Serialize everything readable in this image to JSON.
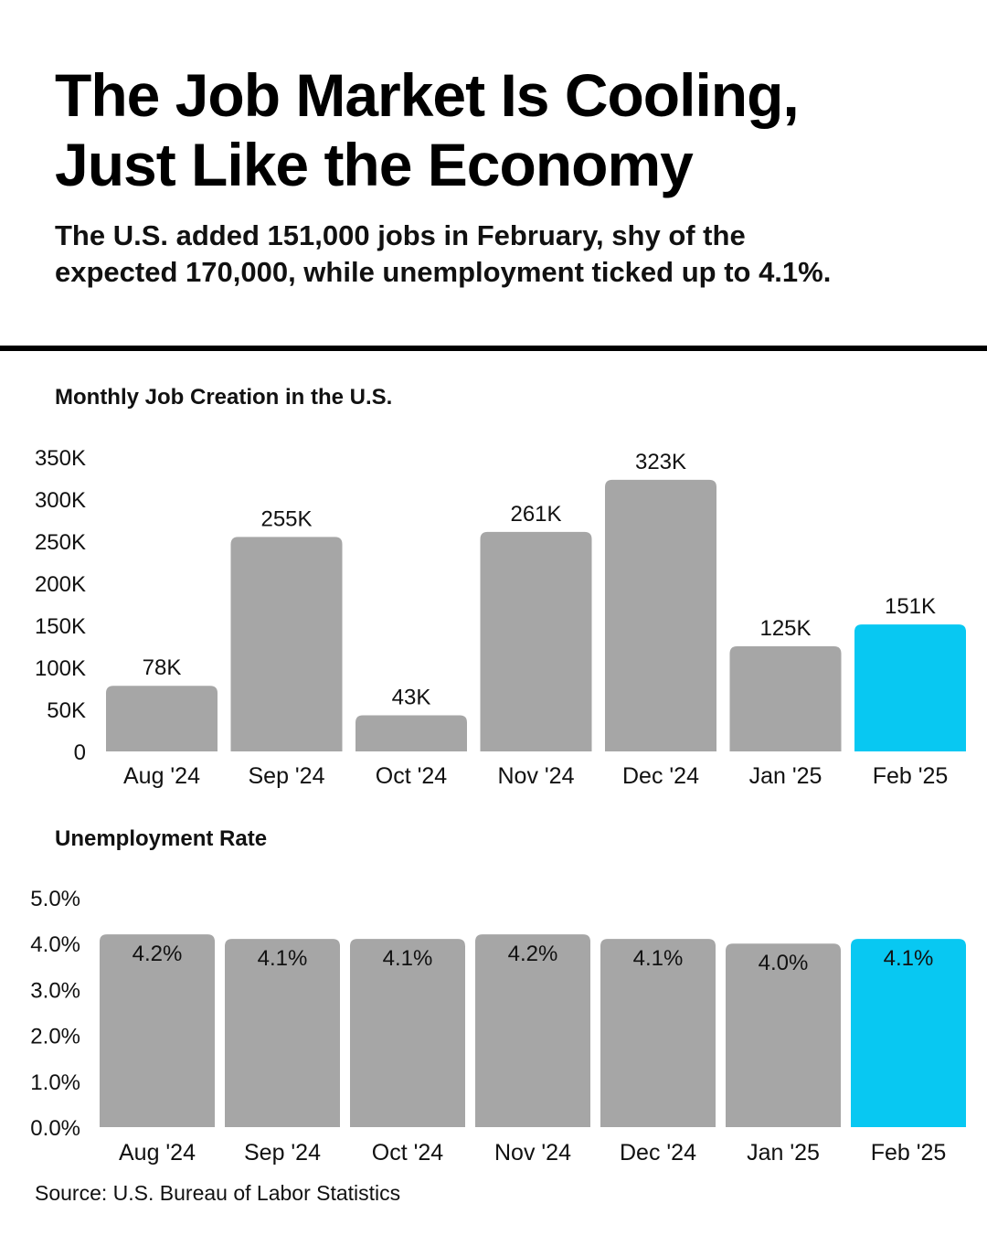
{
  "header": {
    "title_line1": "The Job Market Is Cooling,",
    "title_line2": "Just Like the Economy",
    "subtitle_line1": "The U.S. added 151,000 jobs in February, shy of the",
    "subtitle_line2": "expected 170,000, while unemployment ticked up to 4.1%."
  },
  "source": "Source: U.S. Bureau of Labor Statistics",
  "colors": {
    "default_bar": "#a6a6a6",
    "highlight_bar": "#08c8f2"
  },
  "chart_data": [
    {
      "type": "bar",
      "title": "Monthly Job Creation in the U.S.",
      "categories": [
        "Aug '24",
        "Sep '24",
        "Oct '24",
        "Nov '24",
        "Dec '24",
        "Jan '25",
        "Feb '25"
      ],
      "values": [
        78,
        255,
        43,
        261,
        323,
        125,
        151
      ],
      "value_labels": [
        "78K",
        "255K",
        "43K",
        "261K",
        "323K",
        "125K",
        "151K"
      ],
      "yticks": [
        "0",
        "50K",
        "100K",
        "150K",
        "200K",
        "250K",
        "300K",
        "350K"
      ],
      "ylim": [
        0,
        350
      ],
      "unit": "thousands",
      "highlight": "Feb '25",
      "grid": false,
      "label_position": "above"
    },
    {
      "type": "bar",
      "title": "Unemployment Rate",
      "categories": [
        "Aug '24",
        "Sep '24",
        "Oct '24",
        "Nov '24",
        "Dec '24",
        "Jan '25",
        "Feb '25"
      ],
      "values": [
        4.2,
        4.1,
        4.1,
        4.2,
        4.1,
        4.0,
        4.1
      ],
      "value_labels": [
        "4.2%",
        "4.1%",
        "4.1%",
        "4.2%",
        "4.1%",
        "4.0%",
        "4.1%"
      ],
      "yticks": [
        "0.0%",
        "1.0%",
        "2.0%",
        "3.0%",
        "4.0%",
        "5.0%"
      ],
      "ylim": [
        0,
        5
      ],
      "highlight": "Feb '25",
      "grid": false,
      "label_position": "inside-top"
    }
  ]
}
